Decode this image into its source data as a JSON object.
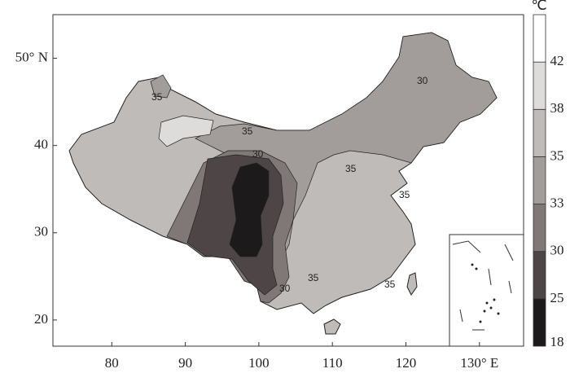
{
  "map": {
    "xticks": [
      80,
      90,
      100,
      110,
      120,
      {
        "value": 130,
        "label": "130° E"
      }
    ],
    "yticks": [
      20,
      30,
      40,
      {
        "value": 50,
        "label": "50° N"
      }
    ],
    "xlim": [
      72,
      136
    ],
    "ylim": [
      17,
      55
    ],
    "colorbar": {
      "unit": "℃",
      "levels": [
        18,
        25,
        30,
        33,
        35,
        38,
        42
      ],
      "colors": [
        "#1c1a1a",
        "#4e4646",
        "#7f7877",
        "#a29d9b",
        "#bfbbb9",
        "#dedcdb",
        "#ffffff"
      ]
    },
    "contour_labels": [
      35,
      30,
      35,
      30,
      35,
      35,
      30,
      35,
      35
    ]
  }
}
